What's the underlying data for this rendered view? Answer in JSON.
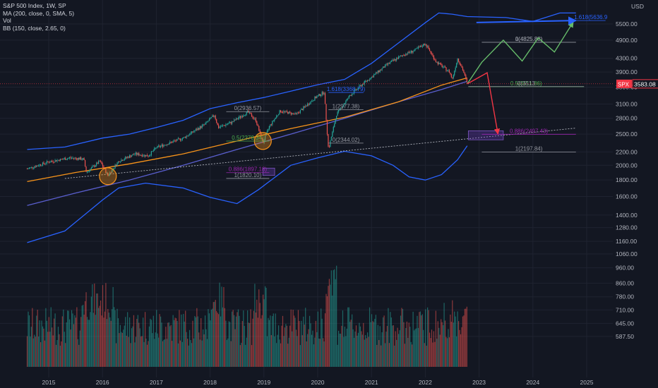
{
  "legend": {
    "symbol_line": "S&P 500 Index, 1W, SP",
    "ma_line": "MA (200, close, 0, SMA, 5)",
    "vol_line": "Vol",
    "bb_line": "BB (150, close, 2.65, 0)"
  },
  "colors": {
    "background": "#131722",
    "grid": "#1f2330",
    "up_candle": "#26a69a",
    "down_candle": "#ef5350",
    "ma": "#f7931a",
    "bb": "#2962ff",
    "price_tag": "#f23645",
    "fib_green": "#4caf50",
    "fib_purple": "#9c27b0",
    "fib_blue": "#2962ff",
    "fib_gray": "#9598a1",
    "circle": "#f7931a"
  },
  "chart_data": {
    "type": "candlestick",
    "symbol": "SPX",
    "currency": "USD",
    "last_price": "3583.08",
    "y_scale": "log",
    "price_ticks": [
      "5500.00",
      "4900.00",
      "4300.00",
      "3900.00",
      "3500.00",
      "3100.00",
      "2800.00",
      "2500.00",
      "2200.00",
      "2000.00",
      "1800.00",
      "1600.00",
      "1400.00",
      "1280.00",
      "1160.00",
      "1060.00",
      "960.00",
      "860.00",
      "780.00",
      "710.00",
      "645.00",
      "587.50"
    ],
    "x_ticks": [
      "2015",
      "2016",
      "2017",
      "2018",
      "2019",
      "2020",
      "2021",
      "2022",
      "2023",
      "2024",
      "2025"
    ],
    "price_path": [
      [
        2014.6,
        1950
      ],
      [
        2015.0,
        2050
      ],
      [
        2015.4,
        2110
      ],
      [
        2015.65,
        2090
      ],
      [
        2015.7,
        1900
      ],
      [
        2015.95,
        2060
      ],
      [
        2016.1,
        1860
      ],
      [
        2016.3,
        2060
      ],
      [
        2016.6,
        2170
      ],
      [
        2016.85,
        2140
      ],
      [
        2017.0,
        2270
      ],
      [
        2017.5,
        2430
      ],
      [
        2017.9,
        2680
      ],
      [
        2018.08,
        2870
      ],
      [
        2018.15,
        2620
      ],
      [
        2018.4,
        2720
      ],
      [
        2018.7,
        2930
      ],
      [
        2018.85,
        2760
      ],
      [
        2018.98,
        2350
      ],
      [
        2019.1,
        2640
      ],
      [
        2019.3,
        2950
      ],
      [
        2019.6,
        2880
      ],
      [
        2019.95,
        3240
      ],
      [
        2020.12,
        3380
      ],
      [
        2020.2,
        2240
      ],
      [
        2020.35,
        2880
      ],
      [
        2020.6,
        3300
      ],
      [
        2020.85,
        3600
      ],
      [
        2021.0,
        3760
      ],
      [
        2021.3,
        4130
      ],
      [
        2021.6,
        4420
      ],
      [
        2021.8,
        4550
      ],
      [
        2022.0,
        4780
      ],
      [
        2022.2,
        4200
      ],
      [
        2022.45,
        3900
      ],
      [
        2022.5,
        3700
      ],
      [
        2022.6,
        4300
      ],
      [
        2022.7,
        3950
      ],
      [
        2022.78,
        3583
      ]
    ],
    "ma200_path": [
      [
        2014.6,
        1780
      ],
      [
        2015.5,
        1900
      ],
      [
        2016.5,
        2020
      ],
      [
        2017.5,
        2170
      ],
      [
        2018.5,
        2380
      ],
      [
        2019.5,
        2600
      ],
      [
        2020.5,
        2820
      ],
      [
        2021.5,
        3150
      ],
      [
        2022.3,
        3550
      ],
      [
        2022.78,
        3740
      ]
    ],
    "bb_upper_path": [
      [
        2014.6,
        2240
      ],
      [
        2015.3,
        2280
      ],
      [
        2016.0,
        2430
      ],
      [
        2016.5,
        2500
      ],
      [
        2017.0,
        2620
      ],
      [
        2017.5,
        2760
      ],
      [
        2018.0,
        3000
      ],
      [
        2018.5,
        3130
      ],
      [
        2019.0,
        3250
      ],
      [
        2019.5,
        3400
      ],
      [
        2020.0,
        3560
      ],
      [
        2020.5,
        3700
      ],
      [
        2021.0,
        4150
      ],
      [
        2021.5,
        4800
      ],
      [
        2022.0,
        5550
      ],
      [
        2022.25,
        5950
      ],
      [
        2022.5,
        5900
      ],
      [
        2022.78,
        5800
      ],
      [
        2023.5,
        5760
      ],
      [
        2024.0,
        5600
      ],
      [
        2024.5,
        5950
      ],
      [
        2024.8,
        5950
      ]
    ],
    "bb_middle_path": [
      [
        2014.6,
        1500
      ],
      [
        2015.5,
        1640
      ],
      [
        2016.5,
        1800
      ],
      [
        2017.5,
        2000
      ],
      [
        2018.5,
        2240
      ],
      [
        2019.5,
        2500
      ],
      [
        2020.5,
        2800
      ],
      [
        2021.5,
        3150
      ],
      [
        2022.3,
        3440
      ],
      [
        2022.78,
        3650
      ]
    ],
    "bb_lower_path": [
      [
        2014.6,
        1150
      ],
      [
        2015.3,
        1250
      ],
      [
        2016.0,
        1560
      ],
      [
        2016.3,
        1700
      ],
      [
        2016.8,
        1760
      ],
      [
        2017.5,
        1700
      ],
      [
        2018.0,
        1590
      ],
      [
        2018.5,
        1520
      ],
      [
        2018.9,
        1680
      ],
      [
        2019.5,
        2000
      ],
      [
        2020.0,
        2110
      ],
      [
        2020.5,
        2210
      ],
      [
        2021.0,
        2140
      ],
      [
        2021.4,
        2000
      ],
      [
        2021.7,
        1840
      ],
      [
        2022.0,
        1800
      ],
      [
        2022.3,
        1870
      ],
      [
        2022.6,
        2080
      ],
      [
        2022.78,
        2300
      ]
    ],
    "trendline": {
      "from": [
        2015.3,
        1820
      ],
      "to": [
        2024.8,
        2610
      ]
    },
    "projections": {
      "up_path": [
        [
          2022.78,
          3583
        ],
        [
          2023.05,
          4180
        ],
        [
          2023.45,
          4900
        ],
        [
          2023.8,
          4220
        ],
        [
          2024.1,
          4980
        ],
        [
          2024.4,
          4500
        ],
        [
          2024.75,
          5580
        ]
      ],
      "down_path": [
        [
          2022.78,
          3583
        ],
        [
          2023.15,
          3880
        ],
        [
          2023.35,
          2500
        ]
      ],
      "long_arrow": {
        "from": [
          2022.95,
          5560
        ],
        "to": [
          2024.8,
          5637
        ]
      }
    },
    "fib_levels": [
      {
        "label": "0(2936.57)",
        "value": 2936.57,
        "x_range": [
          2018.3,
          2019.1
        ],
        "group": "2018"
      },
      {
        "label": "0.5(2378.34)",
        "value": 2378.34,
        "x_range": [
          2018.3,
          2019.1
        ],
        "group": "2018"
      },
      {
        "label": "1(2977.38)",
        "value": 2977.38,
        "x_range": [
          2020.2,
          2020.85
        ],
        "group": "2020"
      },
      {
        "label": "0(2344.02)",
        "value": 2344.02,
        "x_range": [
          2020.2,
          2020.85
        ],
        "group": "2020"
      },
      {
        "label": "1.618(3368.79)",
        "value": 3368.79,
        "x_range": [
          2020.2,
          2020.85
        ],
        "group": "2020"
      },
      {
        "label": "0.886(1897.18)",
        "value": 1897.18,
        "x_range": [
          2018.3,
          2019.1
        ],
        "group": "2018"
      },
      {
        "label": "1(1820.10)",
        "value": 1820.1,
        "x_range": [
          2018.3,
          2019.1
        ],
        "group": "2018"
      },
      {
        "label": "0(4825.88)",
        "value": 4825.88,
        "x_range": [
          2023.05,
          2024.8
        ],
        "group": "2023"
      },
      {
        "label": "1(4825.88)",
        "value": 4825.88,
        "x_range": [
          2023.05,
          2024.8
        ],
        "group": "2023"
      },
      {
        "label": "0.5(3511.86)",
        "value": 3511.86,
        "x_range": [
          2022.8,
          2024.95
        ],
        "group": "2023"
      },
      {
        "label": "0(3513",
        "value": 3513,
        "x_range": [
          2022.8,
          2024.95
        ],
        "group": "2023"
      },
      {
        "label": "0.886(2497.43)",
        "value": 2497.43,
        "x_range": [
          2023.05,
          2024.8
        ],
        "group": "2023"
      },
      {
        "label": "1(2197.84)",
        "value": 2197.84,
        "x_range": [
          2023.05,
          2024.8
        ],
        "group": "2023"
      },
      {
        "label": "1.618(5636.9",
        "value": 5636.9,
        "x_range": [
          2024.8,
          2025.35
        ],
        "group": "top"
      }
    ],
    "highlight_circles": [
      [
        2016.1,
        1850
      ],
      [
        2018.98,
        2380
      ]
    ],
    "target_boxes": [
      {
        "x_range": [
          2018.98,
          2019.2
        ],
        "price_range": [
          1860,
          1960
        ]
      },
      {
        "x_range": [
          2022.8,
          2023.45
        ],
        "price_range": [
          2400,
          2560
        ]
      }
    ]
  }
}
